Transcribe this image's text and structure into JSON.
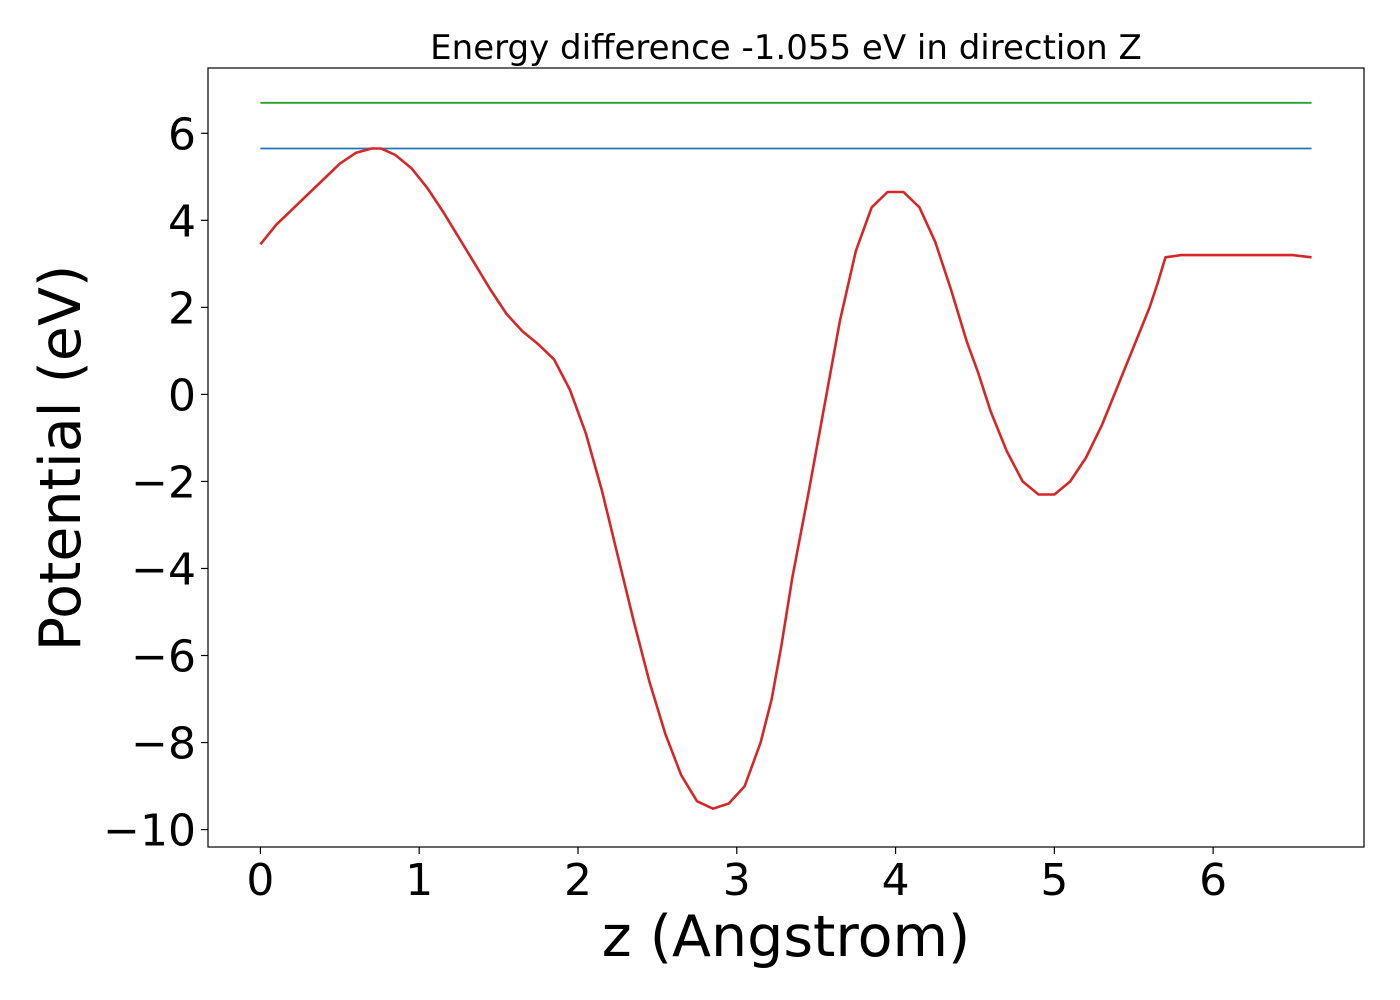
{
  "chart_data": {
    "type": "line",
    "title": "Energy difference -1.055 eV in direction Z",
    "xlabel": "z (Angstrom)",
    "ylabel": "Potential (eV)",
    "xlim": [
      -0.33,
      6.95
    ],
    "ylim": [
      -10.4,
      7.5
    ],
    "xticks": [
      {
        "value": 0,
        "label": "0"
      },
      {
        "value": 1,
        "label": "1"
      },
      {
        "value": 2,
        "label": "2"
      },
      {
        "value": 3,
        "label": "3"
      },
      {
        "value": 4,
        "label": "4"
      },
      {
        "value": 5,
        "label": "5"
      },
      {
        "value": 6,
        "label": "6"
      }
    ],
    "yticks": [
      {
        "value": 6,
        "label": "6"
      },
      {
        "value": 4,
        "label": "4"
      },
      {
        "value": 2,
        "label": "2"
      },
      {
        "value": 0,
        "label": "0"
      },
      {
        "value": -2,
        "label": "−2"
      },
      {
        "value": -4,
        "label": "−4"
      },
      {
        "value": -6,
        "label": "−6"
      },
      {
        "value": -8,
        "label": "−8"
      },
      {
        "value": -10,
        "label": "−10"
      }
    ],
    "grid": false,
    "legend": "none",
    "series": [
      {
        "color": "#2ca02c",
        "x": [
          0,
          6.62
        ],
        "y": [
          6.7,
          6.7
        ]
      },
      {
        "color": "#1f77b4",
        "x": [
          0,
          6.62
        ],
        "y": [
          5.65,
          5.65
        ]
      },
      {
        "color": "#d62728",
        "x": [
          0,
          0.1,
          0.2,
          0.3,
          0.4,
          0.5,
          0.6,
          0.7,
          0.76,
          0.85,
          0.95,
          1.05,
          1.15,
          1.25,
          1.35,
          1.45,
          1.55,
          1.65,
          1.75,
          1.85,
          1.95,
          2.05,
          2.15,
          2.25,
          2.35,
          2.45,
          2.55,
          2.65,
          2.75,
          2.85,
          2.95,
          3.05,
          3.15,
          3.22,
          3.28,
          3.35,
          3.45,
          3.55,
          3.65,
          3.75,
          3.85,
          3.95,
          4.05,
          4.15,
          4.25,
          4.35,
          4.45,
          4.52,
          4.6,
          4.7,
          4.8,
          4.9,
          5.0,
          5.1,
          5.2,
          5.3,
          5.4,
          5.5,
          5.6,
          5.65,
          5.7,
          5.8,
          5.9,
          6.0,
          6.1,
          6.2,
          6.3,
          6.4,
          6.5,
          6.62
        ],
        "y": [
          3.45,
          3.9,
          4.25,
          4.6,
          4.95,
          5.3,
          5.55,
          5.65,
          5.65,
          5.5,
          5.2,
          4.75,
          4.2,
          3.6,
          3.0,
          2.4,
          1.85,
          1.45,
          1.15,
          0.8,
          0.1,
          -0.9,
          -2.2,
          -3.7,
          -5.2,
          -6.6,
          -7.8,
          -8.75,
          -9.35,
          -9.52,
          -9.4,
          -9.0,
          -8.0,
          -7.0,
          -5.8,
          -4.2,
          -2.3,
          -0.3,
          1.7,
          3.3,
          4.3,
          4.65,
          4.65,
          4.3,
          3.5,
          2.4,
          1.2,
          0.5,
          -0.4,
          -1.3,
          -2.0,
          -2.3,
          -2.3,
          -2.0,
          -1.45,
          -0.7,
          0.2,
          1.1,
          2.0,
          2.55,
          3.15,
          3.2,
          3.2,
          3.2,
          3.2,
          3.2,
          3.2,
          3.2,
          3.2,
          3.15
        ]
      }
    ]
  }
}
